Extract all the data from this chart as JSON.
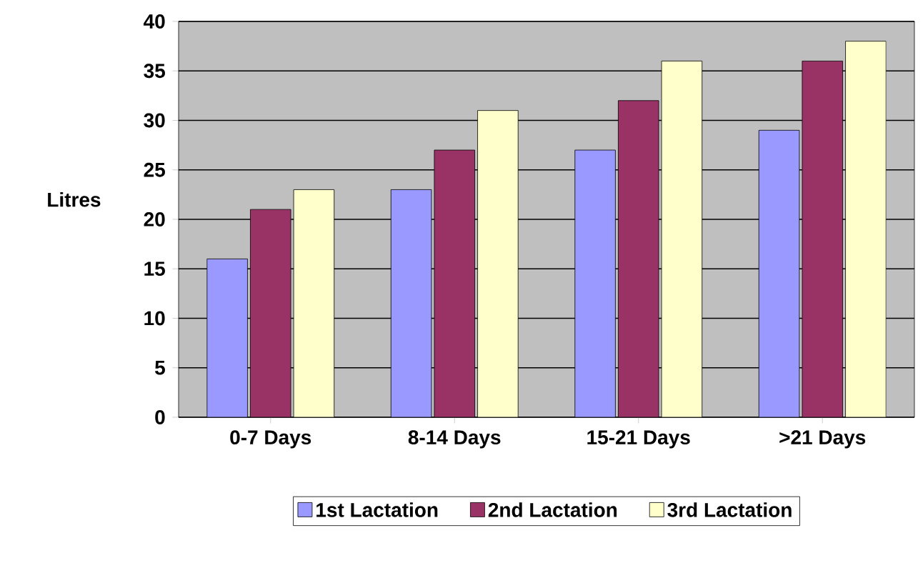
{
  "chart_data": {
    "type": "bar",
    "ylabel": "Litres",
    "categories": [
      "0-7 Days",
      "8-14 Days",
      "15-21 Days",
      ">21 Days"
    ],
    "series": [
      {
        "name": "1st Lactation",
        "color": "#9999ff",
        "values": [
          16,
          23,
          27,
          29
        ]
      },
      {
        "name": "2nd Lactation",
        "color": "#993366",
        "values": [
          21,
          27,
          32,
          36
        ]
      },
      {
        "name": "3rd Lactation",
        "color": "#ffffcc",
        "values": [
          23,
          31,
          36,
          38
        ]
      }
    ],
    "ylim": [
      0,
      40
    ],
    "yticks": [
      0,
      5,
      10,
      15,
      20,
      25,
      30,
      35,
      40
    ],
    "grid": "y",
    "legend": "bottom"
  }
}
